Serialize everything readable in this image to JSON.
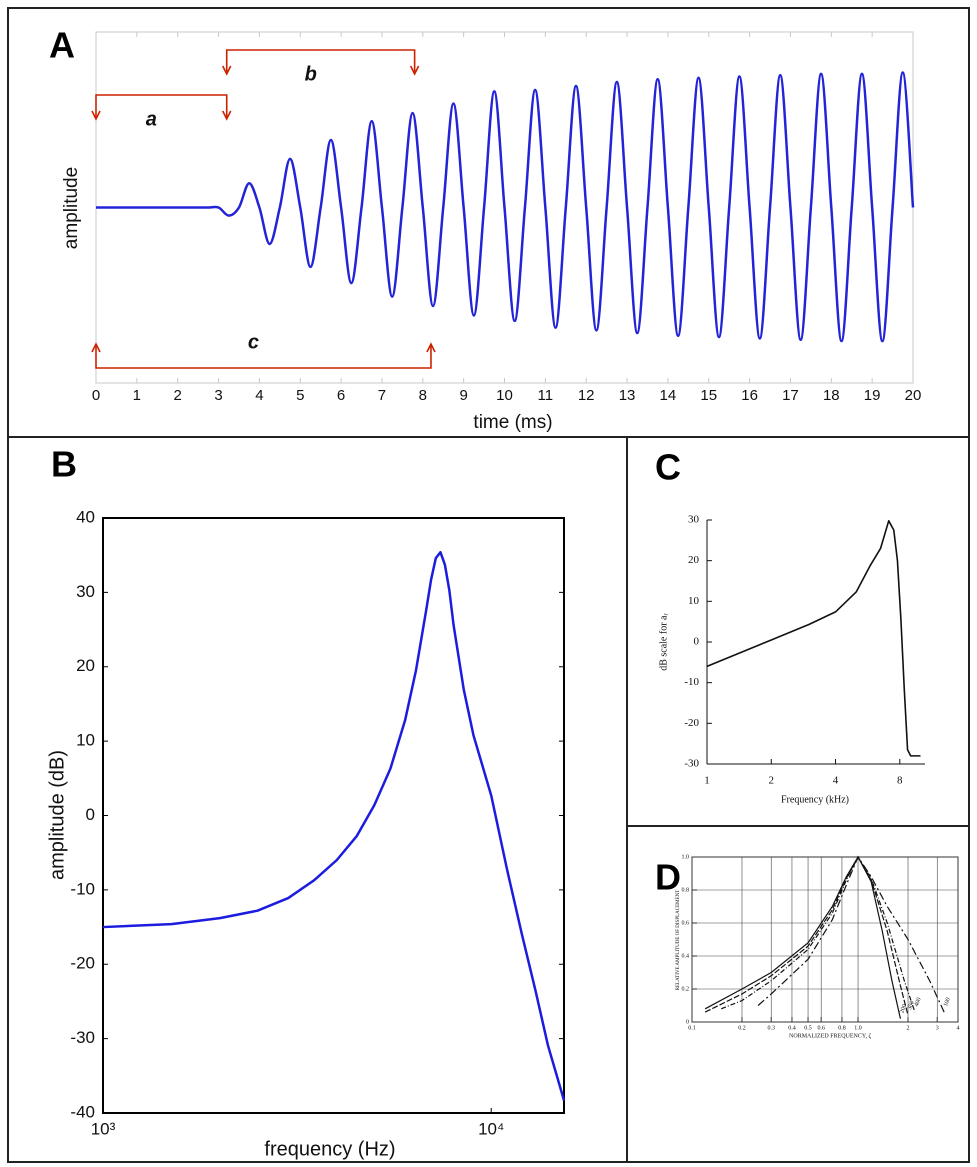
{
  "chart_data": [
    {
      "type": "line",
      "label": "A",
      "xlabel": "time (ms)",
      "ylabel": "amplitude",
      "color": "#2323d8",
      "xlim": [
        0,
        20
      ],
      "ylim": [
        -1.3,
        1.3
      ],
      "xticks": [
        0,
        1,
        2,
        3,
        4,
        5,
        6,
        7,
        8,
        9,
        10,
        11,
        12,
        13,
        14,
        15,
        16,
        17,
        18,
        19,
        20
      ],
      "x": [
        0,
        0.25,
        0.5,
        0.75,
        1,
        1.25,
        1.5,
        1.75,
        2,
        2.25,
        2.5,
        2.75,
        3,
        3.25,
        3.5,
        3.75,
        4,
        4.25,
        4.5,
        4.75,
        5,
        5.25,
        5.5,
        5.75,
        6,
        6.25,
        6.5,
        6.75,
        7,
        7.25,
        7.5,
        7.75,
        8,
        8.25,
        8.5,
        8.75,
        9,
        9.25,
        9.5,
        9.75,
        10,
        10.25,
        10.5,
        10.75,
        11,
        11.25,
        11.5,
        11.75,
        12,
        12.25,
        12.5,
        12.75,
        13,
        13.25,
        13.5,
        13.75,
        14,
        14.25,
        14.5,
        14.75,
        15,
        15.25,
        15.5,
        15.75,
        16,
        16.25,
        16.5,
        16.75,
        17,
        17.25,
        17.5,
        17.75,
        18,
        18.25,
        18.5,
        18.75,
        19,
        19.25,
        19.5,
        19.75,
        20
      ],
      "values": [
        0,
        0,
        0,
        0,
        0,
        0,
        0,
        0,
        0,
        0,
        0,
        0,
        0,
        -0.06,
        0,
        0.18,
        0,
        -0.27,
        0,
        0.36,
        0,
        -0.44,
        0,
        0.5,
        0,
        -0.56,
        0,
        0.64,
        0,
        -0.66,
        0,
        0.7,
        0,
        -0.73,
        0,
        0.77,
        0,
        -0.8,
        0,
        0.86,
        0,
        -0.84,
        0,
        0.87,
        0,
        -0.89,
        0,
        0.9,
        0,
        -0.91,
        0,
        0.93,
        0,
        -0.93,
        0,
        0.95,
        0,
        -0.95,
        0,
        0.96,
        0,
        -0.96,
        0,
        0.97,
        0,
        -0.97,
        0,
        0.98,
        0,
        -0.98,
        0,
        0.99,
        0,
        -0.99,
        0,
        0.99,
        0,
        -0.99,
        0,
        1,
        0
      ],
      "annotations": [
        {
          "text": "a",
          "start": 0,
          "end": 3.2,
          "color": "#cc2200"
        },
        {
          "text": "b",
          "start": 3.2,
          "end": 7.8,
          "color": "#cc2200"
        },
        {
          "text": "c",
          "start": 0,
          "end": 8.2,
          "color": "#cc2200"
        }
      ]
    },
    {
      "type": "line",
      "label": "B",
      "xlabel": "frequency (Hz)",
      "ylabel": "amplitude (dB)",
      "color": "#1c1ce0",
      "xscale": "log",
      "xlim": [
        1000,
        15400
      ],
      "ylim": [
        -40,
        40
      ],
      "xticks": [
        {
          "value": 1000,
          "label": "10³"
        },
        {
          "value": 10000,
          "label": "10⁴"
        }
      ],
      "yticks": [
        -40,
        -30,
        -20,
        -10,
        0,
        10,
        20,
        30,
        40
      ],
      "x": [
        1000,
        1500,
        2000,
        2500,
        3000,
        3500,
        4000,
        4500,
        5000,
        5500,
        6000,
        6400,
        6800,
        7000,
        7200,
        7400,
        7600,
        7800,
        8000,
        8500,
        9000,
        10000,
        11000,
        12000,
        13000,
        14000,
        15400
      ],
      "values": [
        -15,
        -14.6,
        -13.8,
        -12.8,
        -11.1,
        -8.7,
        -6,
        -2.8,
        1.4,
        6.3,
        12.8,
        19.5,
        27.6,
        31.7,
        34.6,
        35.4,
        33.7,
        30.3,
        25.6,
        16.9,
        10.8,
        2.7,
        -7.4,
        -16,
        -23.5,
        -30.9,
        -38.3
      ]
    },
    {
      "type": "line",
      "label": "C",
      "xlabel": "Frequency (kHz)",
      "ylabel": "dB scale for aᵣ",
      "color": "#111111",
      "xscale": "log",
      "xlim": [
        1,
        10.5
      ],
      "ylim": [
        -30,
        30
      ],
      "xticks": [
        1,
        2,
        4,
        8
      ],
      "yticks": [
        -30,
        -20,
        -10,
        0,
        10,
        20,
        30
      ],
      "x": [
        1,
        2,
        3,
        4,
        5,
        5.8,
        6.5,
        7.1,
        7.5,
        7.8,
        8.1,
        8.4,
        8.7,
        9,
        10
      ],
      "values": [
        -6,
        0.5,
        4.3,
        7.4,
        12.3,
        18.7,
        23,
        29.8,
        27.5,
        20,
        5.4,
        -11.8,
        -26.5,
        -28,
        -28
      ]
    },
    {
      "type": "line",
      "label": "D",
      "xlabel": "NORMALIZED FREQUENCY, ζ",
      "ylabel": "RELATIVE AMPLITUDE OF DISPLACEMENT",
      "xscale": "log",
      "grid": true,
      "xlim": [
        0.1,
        4
      ],
      "ylim": [
        0,
        1
      ],
      "xticks": [
        0.1,
        0.2,
        0.3,
        0.4,
        0.5,
        0.6,
        0.8,
        {
          "value": 1,
          "label": "1.0"
        },
        2,
        3,
        4
      ],
      "yticks": [
        0,
        0.2,
        0.4,
        0.6,
        0.8,
        {
          "value": 1,
          "label": "1.0"
        }
      ],
      "series": [
        {
          "name": "200",
          "color": "#111111",
          "x": [
            0.12,
            0.2,
            0.3,
            0.5,
            0.7,
            0.85,
            1,
            1.2,
            1.4,
            1.6,
            1.8
          ],
          "values": [
            0.08,
            0.2,
            0.3,
            0.48,
            0.7,
            0.88,
            1,
            0.85,
            0.55,
            0.25,
            0.02
          ]
        },
        {
          "name": "300",
          "color": "#111111",
          "x": [
            0.12,
            0.2,
            0.3,
            0.5,
            0.7,
            0.85,
            1,
            1.2,
            1.5,
            1.8,
            2
          ],
          "values": [
            0.06,
            0.17,
            0.28,
            0.46,
            0.68,
            0.87,
            1,
            0.86,
            0.55,
            0.22,
            0.04
          ]
        },
        {
          "name": "400",
          "color": "#111111",
          "x": [
            0.15,
            0.2,
            0.3,
            0.5,
            0.7,
            0.85,
            1,
            1.2,
            1.5,
            1.9,
            2.2
          ],
          "values": [
            0.08,
            0.13,
            0.25,
            0.44,
            0.66,
            0.86,
            1,
            0.87,
            0.6,
            0.25,
            0.06
          ]
        },
        {
          "name": "100",
          "color": "#111111",
          "x": [
            0.25,
            0.3,
            0.5,
            0.7,
            0.85,
            1,
            1.2,
            1.5,
            2,
            2.7,
            3.3
          ],
          "values": [
            0.1,
            0.17,
            0.38,
            0.62,
            0.83,
            1,
            0.88,
            0.7,
            0.5,
            0.25,
            0.06
          ]
        }
      ]
    }
  ]
}
